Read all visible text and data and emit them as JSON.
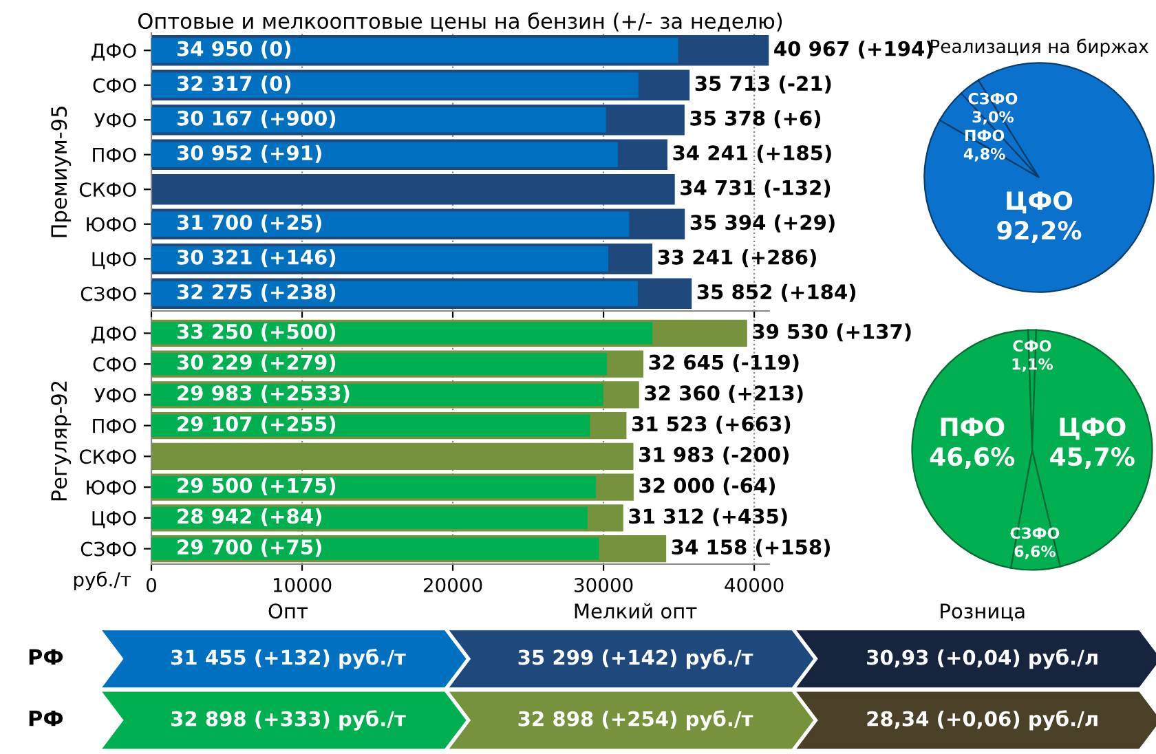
{
  "chart_data": [
    {
      "type": "bar",
      "orientation": "horizontal",
      "title": "Оптовые и мелкооптовые цены на бензин (+/- за неделю)",
      "ylabel": "Премиум-95",
      "categories": [
        "ДФО",
        "СФО",
        "УФО",
        "ПФО",
        "СКФО",
        "ЮФО",
        "ЦФО",
        "СЗФО"
      ],
      "series": [
        {
          "color": "#1f497d",
          "values": [
            40967,
            35713,
            35378,
            34241,
            34731,
            35394,
            33241,
            35852
          ],
          "value_labels": [
            "40 967 (+194)",
            "35 713 (-21)",
            "35 378 (+6)",
            "34 241 (+185)",
            "34 731 (-132)",
            "35 394 (+29)",
            "33 241 (+286)",
            "35 852 (+184)"
          ]
        },
        {
          "color": "#0070c0",
          "values": [
            34950,
            32317,
            30167,
            30952,
            null,
            31700,
            30321,
            32275
          ],
          "value_labels": [
            "34 950 (0)",
            "32 317 (0)",
            "30 167 (+900)",
            "30 952 (+91)",
            null,
            "31 700 (+25)",
            "30 321 (+146)",
            "32 275 (+238)"
          ]
        }
      ],
      "xlim": [
        0,
        41000
      ],
      "xticks": [
        0,
        10000,
        20000,
        30000,
        40000
      ],
      "tick_labels": "y",
      "grid": "x"
    },
    {
      "type": "bar",
      "orientation": "horizontal",
      "ylabel": "Регуляр-92",
      "xlabel": "руб./т",
      "categories": [
        "ДФО",
        "СФО",
        "УФО",
        "ПФО",
        "СКФО",
        "ЮФО",
        "ЦФО",
        "СЗФО"
      ],
      "series": [
        {
          "color": "#76923c",
          "values": [
            39530,
            32645,
            32360,
            31523,
            31983,
            32000,
            31312,
            34158
          ],
          "value_labels": [
            "39 530 (+137)",
            "32 645 (-119)",
            "32 360 (+213)",
            "31 523 (+663)",
            "31 983 (-200)",
            "32 000 (-64)",
            "31 312 (+435)",
            "34 158 (+158)"
          ]
        },
        {
          "color": "#00b050",
          "values": [
            33250,
            30229,
            29983,
            29107,
            null,
            29500,
            28942,
            29700
          ],
          "value_labels": [
            "33 250 (+500)",
            "30 229 (+279)",
            "29 983 (+2533)",
            "29 107 (+255)",
            null,
            "29 500 (+175)",
            "28 942 (+84)",
            "29 700 (+75)"
          ]
        }
      ],
      "xlim": [
        0,
        41000
      ],
      "xticks": [
        0,
        10000,
        20000,
        30000,
        40000
      ],
      "grid": "x"
    },
    {
      "type": "pie",
      "title": "Реализация на биржах",
      "categories": [
        "ПФО",
        "СЗФО",
        "ЦФО"
      ],
      "values": [
        4.8,
        3.0,
        92.2
      ],
      "value_labels": [
        "4,8%",
        "3,0%",
        "92,2%"
      ],
      "colors": [
        "#0a72cc",
        "#0a72cc",
        "#0a72cc"
      ]
    },
    {
      "type": "pie",
      "categories": [
        "СФО",
        "ЦФО",
        "СЗФО",
        "ПФО"
      ],
      "values": [
        1.1,
        45.7,
        6.6,
        46.6
      ],
      "value_labels": [
        "1,1%",
        "45,7%",
        "6,6%",
        "46,6%"
      ],
      "colors": [
        "#00b050",
        "#00b050",
        "#00b050",
        "#00b050"
      ]
    },
    {
      "type": "other",
      "categories": [
        "Опт",
        "Мелкий опт",
        "Розница"
      ],
      "y_categories": [
        "РФ",
        "РФ"
      ],
      "cell_labels": [
        [
          "31 455 (+132) руб./т",
          "35 299 (+142) руб./т",
          "30,93 (+0,04) руб./л"
        ],
        [
          "32 898 (+333) руб./т",
          "32 898 (+254) руб./т",
          "28,34 (+0,06) руб./л"
        ]
      ],
      "colors": [
        [
          "#0070c0",
          "#1f497d",
          "#17243d"
        ],
        [
          "#00b050",
          "#76923c",
          "#4a4128"
        ]
      ]
    }
  ]
}
